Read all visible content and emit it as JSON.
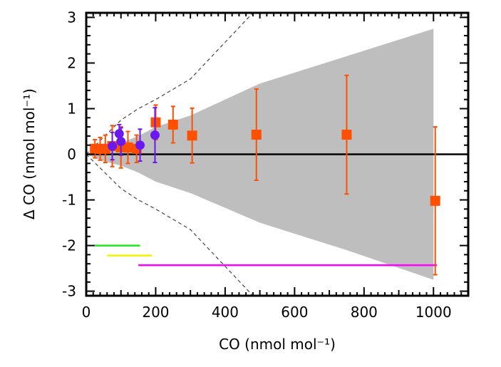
{
  "chart_data": {
    "type": "scatter",
    "xlabel": "CO (nmol mol⁻¹)",
    "ylabel": "Δ CO (nmol mol⁻¹)",
    "xlim": [
      0,
      1100
    ],
    "ylim": [
      -3.1,
      3.1
    ],
    "x_ticks": [
      0,
      200,
      400,
      600,
      800,
      1000
    ],
    "y_ticks": [
      -3,
      -2,
      -1,
      0,
      1,
      2,
      3
    ],
    "zero_line": 0,
    "uncertainty_band": {
      "color": "#bebebe",
      "x": [
        0,
        50,
        100,
        150,
        200,
        300,
        500,
        750,
        1000
      ],
      "upper": [
        0,
        0.15,
        0.25,
        0.4,
        0.6,
        0.85,
        1.55,
        2.15,
        2.75
      ],
      "lower": [
        0,
        -0.15,
        -0.25,
        -0.4,
        -0.6,
        -0.85,
        -1.5,
        -2.1,
        -2.75
      ]
    },
    "dashed_envelope": {
      "color": "#444444",
      "x": [
        0,
        100,
        150,
        200,
        300,
        480
      ],
      "upper": [
        0,
        0.75,
        1.0,
        1.2,
        1.65,
        3.1
      ],
      "lower": [
        0,
        -0.75,
        -1.0,
        -1.2,
        -1.65,
        -3.1
      ]
    },
    "series": [
      {
        "name": "orange squares",
        "color": "#ff4f00",
        "marker": "square",
        "points": [
          {
            "x": 25,
            "y": 0.12,
            "err": 0.2
          },
          {
            "x": 40,
            "y": 0.12,
            "err": 0.25
          },
          {
            "x": 55,
            "y": 0.12,
            "err": 0.3
          },
          {
            "x": 75,
            "y": 0.18,
            "err": 0.45
          },
          {
            "x": 100,
            "y": 0.15,
            "err": 0.45
          },
          {
            "x": 120,
            "y": 0.15,
            "err": 0.35
          },
          {
            "x": 145,
            "y": 0.12,
            "err": 0.3
          },
          {
            "x": 200,
            "y": 0.7,
            "err": 0.38
          },
          {
            "x": 250,
            "y": 0.65,
            "err": 0.4
          },
          {
            "x": 305,
            "y": 0.41,
            "err": 0.6
          },
          {
            "x": 490,
            "y": 0.43,
            "err": 1.0
          },
          {
            "x": 750,
            "y": 0.43,
            "err": 1.3
          },
          {
            "x": 1005,
            "y": -1.02,
            "err": 1.62
          }
        ]
      },
      {
        "name": "purple circles",
        "color": "#6a18f0",
        "marker": "circle",
        "points": [
          {
            "x": 75,
            "y": 0.18,
            "err": 0.3
          },
          {
            "x": 95,
            "y": 0.45,
            "err": 0.2
          },
          {
            "x": 100,
            "y": 0.28,
            "err": 0.3
          },
          {
            "x": 155,
            "y": 0.2,
            "err": 0.35
          },
          {
            "x": 198,
            "y": 0.42,
            "err": 0.6
          }
        ]
      }
    ],
    "range_lines": [
      {
        "color": "#1ee81e",
        "x_start": 25,
        "x_end": 155,
        "y": -2.0
      },
      {
        "color": "#f2f200",
        "x_start": 60,
        "x_end": 190,
        "y": -2.22
      },
      {
        "color": "#ff00ff",
        "x_start": 150,
        "x_end": 1010,
        "y": -2.43
      }
    ]
  }
}
